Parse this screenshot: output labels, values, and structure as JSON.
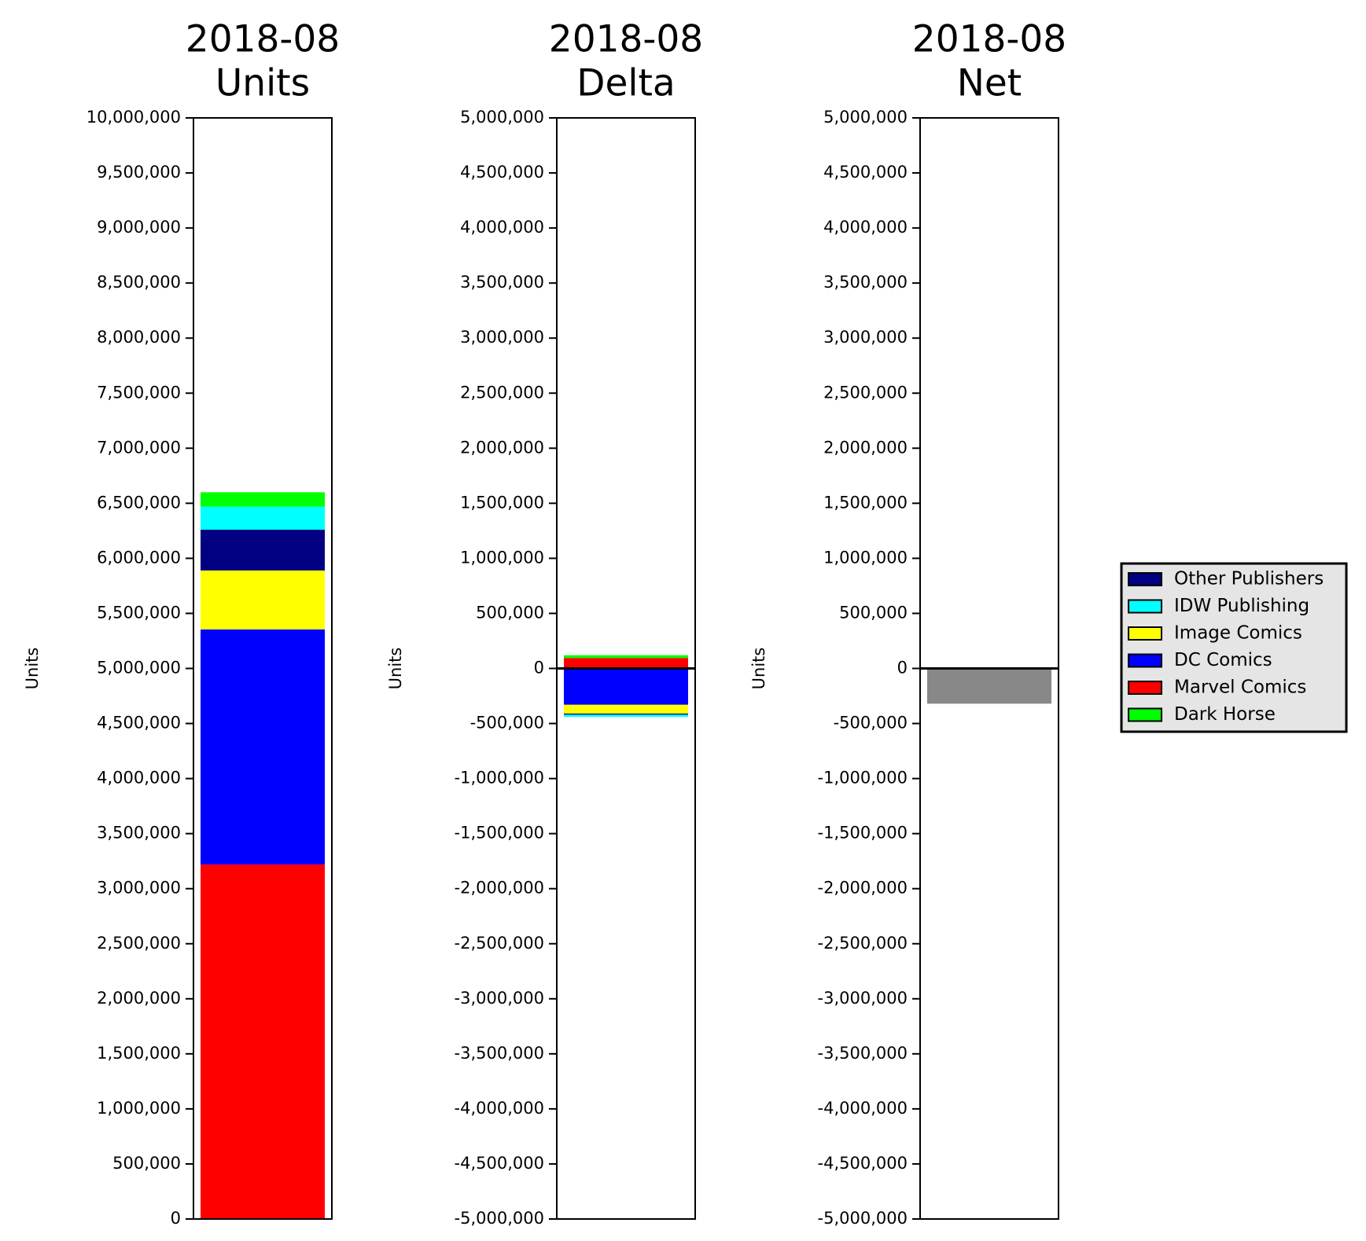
{
  "chart_data": [
    {
      "type": "stacked-bar",
      "title": "2018-08",
      "subtitle": "Units",
      "ylabel": "Units",
      "legend": "right",
      "series": [
        {
          "name": "Other Publishers",
          "color": "#000080",
          "values": [
            370000
          ]
        },
        {
          "name": "IDW Publishing",
          "color": "#00ffff",
          "values": [
            210000
          ]
        },
        {
          "name": "Image Comics",
          "color": "#ffff00",
          "values": [
            535000
          ]
        },
        {
          "name": "DC Comics",
          "color": "#0000ff",
          "values": [
            2135000
          ]
        },
        {
          "name": "Marvel Comics",
          "color": "#ff0000",
          "values": [
            3220000
          ]
        },
        {
          "name": "Dark Horse",
          "color": "#00ff00",
          "values": [
            130000
          ]
        }
      ],
      "ylim": [
        0,
        10000000
      ],
      "yticks": [
        0,
        {
          "value": 500000,
          "label": "500,000"
        },
        {
          "value": 1000000,
          "label": "1,000,000"
        },
        {
          "value": 1500000,
          "label": "1,500,000"
        },
        {
          "value": 2000000,
          "label": "2,000,000"
        },
        {
          "value": 2500000,
          "label": "2,500,000"
        },
        {
          "value": 3000000,
          "label": "3,000,000"
        },
        {
          "value": 3500000,
          "label": "3,500,000"
        },
        {
          "value": 4000000,
          "label": "4,000,000"
        },
        {
          "value": 4500000,
          "label": "4,500,000"
        },
        {
          "value": 5000000,
          "label": "5,000,000"
        },
        {
          "value": 5500000,
          "label": "5,500,000"
        },
        {
          "value": 6000000,
          "label": "6,000,000"
        },
        {
          "value": 6500000,
          "label": "6,500,000"
        },
        {
          "value": 7000000,
          "label": "7,000,000"
        },
        {
          "value": 7500000,
          "label": "7,500,000"
        },
        {
          "value": 8000000,
          "label": "8,000,000"
        },
        {
          "value": 8500000,
          "label": "8,500,000"
        },
        {
          "value": 9000000,
          "label": "9,000,000"
        },
        {
          "value": 9500000,
          "label": "9,500,000"
        },
        {
          "value": 10000000,
          "label": "10,000,000"
        }
      ]
    },
    {
      "type": "stacked-bar",
      "title": "2018-08",
      "subtitle": "Delta",
      "ylabel": "Units",
      "series": [
        {
          "name": "Other Publishers",
          "color": "#000080",
          "values": [
            -10000
          ]
        },
        {
          "name": "IDW Publishing",
          "color": "#00ffff",
          "values": [
            -20000
          ]
        },
        {
          "name": "Image Comics",
          "color": "#ffff00",
          "values": [
            -80000
          ]
        },
        {
          "name": "DC Comics",
          "color": "#0000ff",
          "values": [
            -330000
          ]
        },
        {
          "name": "Marvel Comics",
          "color": "#ff0000",
          "values": [
            95000
          ]
        },
        {
          "name": "Dark Horse",
          "color": "#00ff00",
          "values": [
            25000
          ]
        }
      ],
      "ylim": [
        -5000000,
        5000000
      ],
      "yticks": [
        {
          "value": -5000000,
          "label": "-5,000,000"
        },
        {
          "value": -4500000,
          "label": "-4,500,000"
        },
        {
          "value": -4000000,
          "label": "-4,000,000"
        },
        {
          "value": -3500000,
          "label": "-3,500,000"
        },
        {
          "value": -3000000,
          "label": "-3,000,000"
        },
        {
          "value": -2500000,
          "label": "-2,500,000"
        },
        {
          "value": -2000000,
          "label": "-2,000,000"
        },
        {
          "value": -1500000,
          "label": "-1,500,000"
        },
        {
          "value": -1000000,
          "label": "-1,000,000"
        },
        {
          "value": -500000,
          "label": "-500,000"
        },
        0,
        {
          "value": 500000,
          "label": "500,000"
        },
        {
          "value": 1000000,
          "label": "1,000,000"
        },
        {
          "value": 1500000,
          "label": "1,500,000"
        },
        {
          "value": 2000000,
          "label": "2,000,000"
        },
        {
          "value": 2500000,
          "label": "2,500,000"
        },
        {
          "value": 3000000,
          "label": "3,000,000"
        },
        {
          "value": 3500000,
          "label": "3,500,000"
        },
        {
          "value": 4000000,
          "label": "4,000,000"
        },
        {
          "value": 4500000,
          "label": "4,500,000"
        },
        {
          "value": 5000000,
          "label": "5,000,000"
        }
      ]
    },
    {
      "type": "bar",
      "title": "2018-08",
      "subtitle": "Net",
      "ylabel": "Units",
      "color": "#888888",
      "values": [
        -320000
      ],
      "ylim": [
        -5000000,
        5000000
      ],
      "yticks": [
        {
          "value": -5000000,
          "label": "-5,000,000"
        },
        {
          "value": -4500000,
          "label": "-4,500,000"
        },
        {
          "value": -4000000,
          "label": "-4,000,000"
        },
        {
          "value": -3500000,
          "label": "-3,500,000"
        },
        {
          "value": -3000000,
          "label": "-3,000,000"
        },
        {
          "value": -2500000,
          "label": "-2,500,000"
        },
        {
          "value": -2000000,
          "label": "-2,000,000"
        },
        {
          "value": -1500000,
          "label": "-1,500,000"
        },
        {
          "value": -1000000,
          "label": "-1,000,000"
        },
        {
          "value": -500000,
          "label": "-500,000"
        },
        0,
        {
          "value": 500000,
          "label": "500,000"
        },
        {
          "value": 1000000,
          "label": "1,000,000"
        },
        {
          "value": 1500000,
          "label": "1,500,000"
        },
        {
          "value": 2000000,
          "label": "2,000,000"
        },
        {
          "value": 2500000,
          "label": "2,500,000"
        },
        {
          "value": 3000000,
          "label": "3,000,000"
        },
        {
          "value": 3500000,
          "label": "3,500,000"
        },
        {
          "value": 4000000,
          "label": "4,000,000"
        },
        {
          "value": 4500000,
          "label": "4,500,000"
        },
        {
          "value": 5000000,
          "label": "5,000,000"
        }
      ]
    }
  ]
}
